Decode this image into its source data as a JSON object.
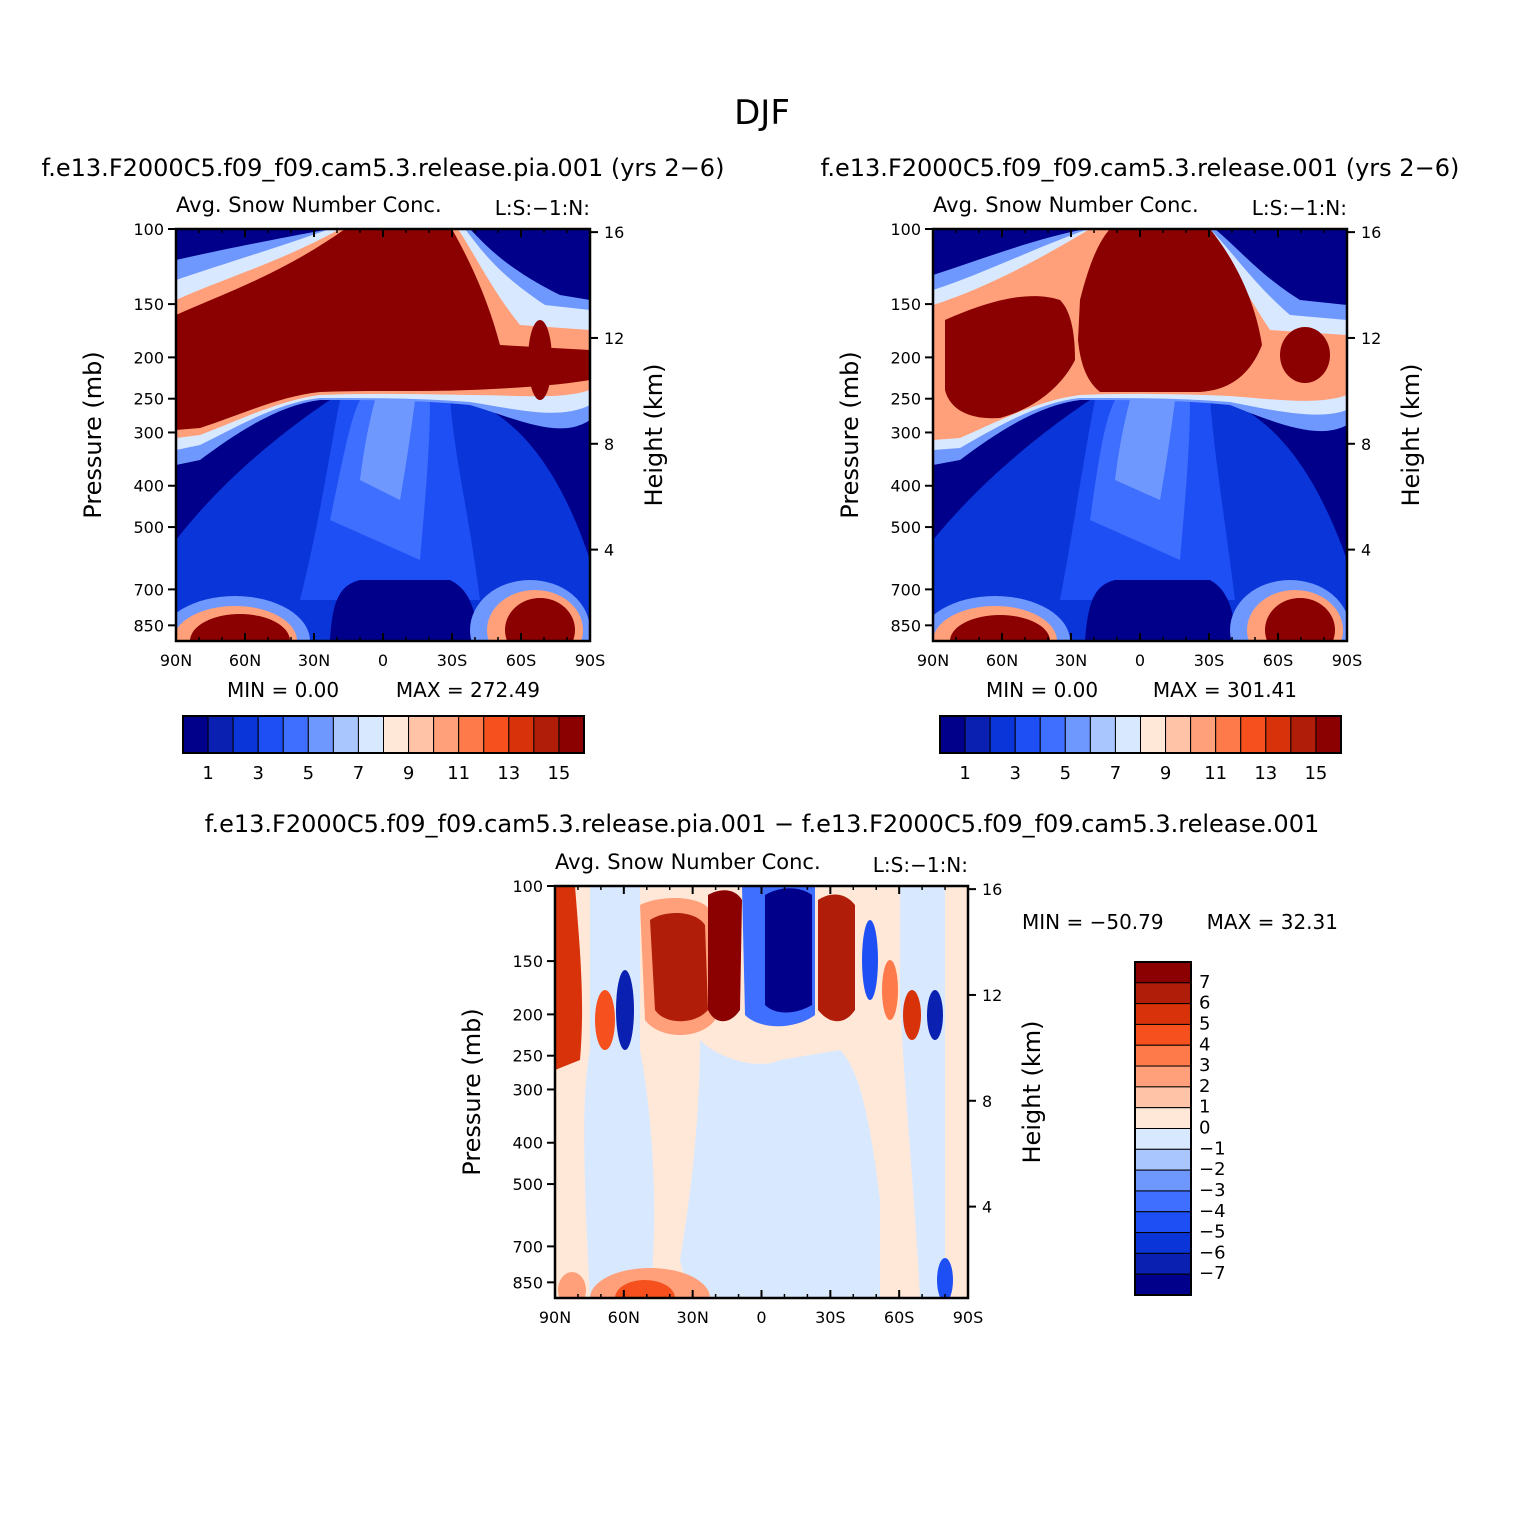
{
  "page_title": "DJF",
  "colors": {
    "top_scale": [
      "#00008b",
      "#0a20b0",
      "#0a35d8",
      "#1e4ff5",
      "#3f6fff",
      "#6f98ff",
      "#a9c6ff",
      "#d8e8ff",
      "#ffe8d8",
      "#ffc4a8",
      "#ffa07a",
      "#ff7a4a",
      "#f5501e",
      "#d8320a",
      "#b01e0a",
      "#8b0000"
    ],
    "diff_scale": [
      "#8b0000",
      "#b01e0a",
      "#d8320a",
      "#f5501e",
      "#ff7a4a",
      "#ffa07a",
      "#ffc4a8",
      "#ffe8d8",
      "#d8e8ff",
      "#a9c6ff",
      "#6f98ff",
      "#3f6fff",
      "#1e4ff5",
      "#0a35d8",
      "#0a20b0",
      "#00008b"
    ]
  },
  "chart_data": [
    {
      "type": "heatmap",
      "name": "panel-pia",
      "case_title": "f.e13.F2000C5.f09_f09.cam5.3.release.pia.001 (yrs 2−6)",
      "subtitle": "Avg. Snow Number Conc.",
      "right_string": "L:S:−1:N:",
      "xlabel": "",
      "ylabel": "Pressure (mb)",
      "y2label": "Height (km)",
      "x_ticks": [
        "90N",
        "60N",
        "30N",
        "0",
        "30S",
        "60S",
        "90S"
      ],
      "y_ticks": [
        "100",
        "150",
        "200",
        "250",
        "300",
        "400",
        "500",
        "700",
        "850"
      ],
      "y2_ticks": [
        "16",
        "12",
        "8",
        "4"
      ],
      "min_text": "MIN =     0.00",
      "max_text": "MAX =  272.49",
      "colorbar_labels": [
        "1",
        "3",
        "5",
        "7",
        "9",
        "11",
        "13",
        "15"
      ],
      "levels": [
        1,
        2,
        3,
        4,
        5,
        6,
        7,
        8,
        9,
        10,
        11,
        12,
        13,
        14,
        15
      ],
      "features": [
        {
          "kind": "upper-max",
          "lat": [
            -90,
            90
          ],
          "top_p": 100,
          "bottom_p": 300,
          "value": 18
        },
        {
          "kind": "low-max",
          "lat": [
            55,
            80
          ],
          "p": [
            800,
            925
          ],
          "value": 16
        },
        {
          "kind": "low-max",
          "lat": [
            -75,
            -50
          ],
          "p": [
            750,
            925
          ],
          "value": 16
        }
      ]
    },
    {
      "type": "heatmap",
      "name": "panel-control",
      "case_title": "f.e13.F2000C5.f09_f09.cam5.3.release.001 (yrs 2−6)",
      "subtitle": "Avg. Snow Number Conc.",
      "right_string": "L:S:−1:N:",
      "xlabel": "",
      "ylabel": "Pressure (mb)",
      "y2label": "Height (km)",
      "x_ticks": [
        "90N",
        "60N",
        "30N",
        "0",
        "30S",
        "60S",
        "90S"
      ],
      "y_ticks": [
        "100",
        "150",
        "200",
        "250",
        "300",
        "400",
        "500",
        "700",
        "850"
      ],
      "y2_ticks": [
        "16",
        "12",
        "8",
        "4"
      ],
      "min_text": "MIN =     0.00",
      "max_text": "MAX =  301.41",
      "colorbar_labels": [
        "1",
        "3",
        "5",
        "7",
        "9",
        "11",
        "13",
        "15"
      ],
      "levels": [
        1,
        2,
        3,
        4,
        5,
        6,
        7,
        8,
        9,
        10,
        11,
        12,
        13,
        14,
        15
      ]
    },
    {
      "type": "heatmap",
      "name": "panel-difference",
      "case_title": "f.e13.F2000C5.f09_f09.cam5.3.release.pia.001 − f.e13.F2000C5.f09_f09.cam5.3.release.001",
      "subtitle": "Avg. Snow Number Conc.",
      "right_string": "L:S:−1:N:",
      "xlabel": "",
      "ylabel": "Pressure (mb)",
      "y2label": "Height (km)",
      "x_ticks": [
        "90N",
        "60N",
        "30N",
        "0",
        "30S",
        "60S",
        "90S"
      ],
      "y_ticks": [
        "100",
        "150",
        "200",
        "250",
        "300",
        "400",
        "500",
        "700",
        "850"
      ],
      "y2_ticks": [
        "16",
        "12",
        "8",
        "4"
      ],
      "min_text": "MIN = −50.79",
      "max_text": "MAX =   32.31",
      "colorbar_labels": [
        "7",
        "6",
        "5",
        "4",
        "3",
        "2",
        "1",
        "0",
        "−1",
        "−2",
        "−3",
        "−4",
        "−5",
        "−6",
        "−7"
      ],
      "levels": [
        7,
        6,
        5,
        4,
        3,
        2,
        1,
        0,
        -1,
        -2,
        -3,
        -4,
        -5,
        -6,
        -7
      ]
    }
  ]
}
